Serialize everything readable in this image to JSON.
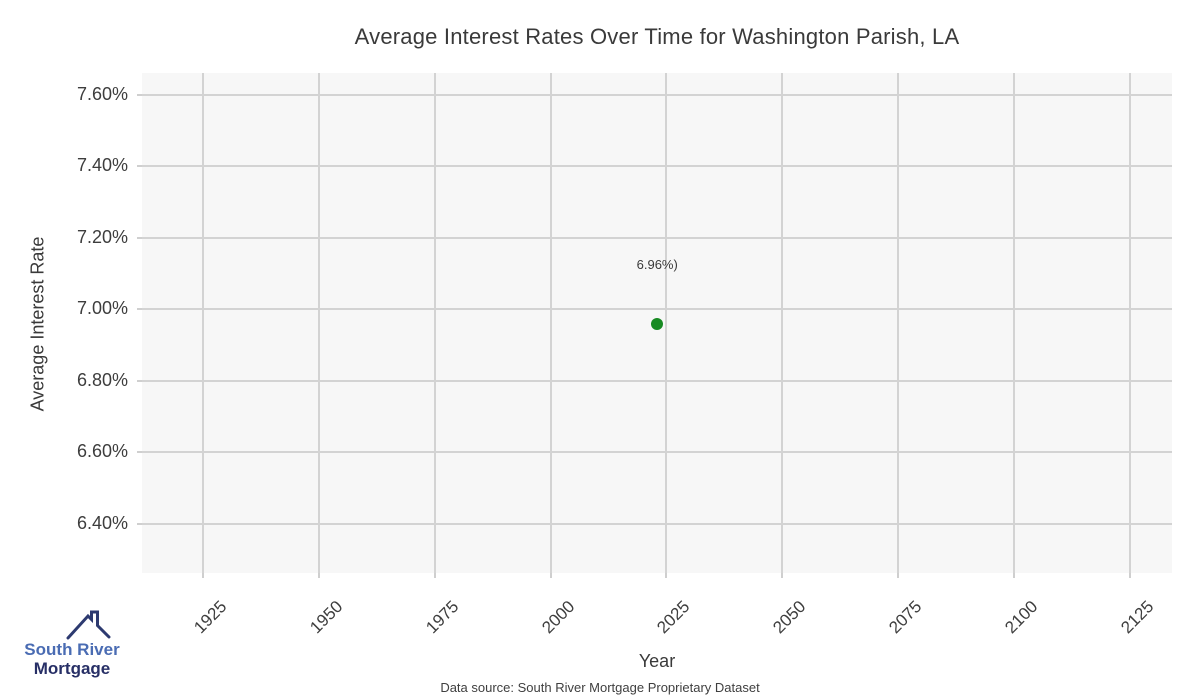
{
  "chart_data": {
    "type": "scatter",
    "title": "Average Interest Rates Over Time for Washington Parish, LA",
    "xlabel": "Year",
    "ylabel": "Average Interest Rate",
    "xlim": [
      1911.8,
      2134.1
    ],
    "ylim": [
      6.263,
      7.661
    ],
    "grid": true,
    "legend": "none",
    "plot_bg": "#f7f7f7",
    "grid_color": "#d3d3d3",
    "x_ticks": [
      {
        "value": 1925,
        "label": "1925"
      },
      {
        "value": 1950,
        "label": "1950"
      },
      {
        "value": 1975,
        "label": "1975"
      },
      {
        "value": 2000,
        "label": "2000"
      },
      {
        "value": 2025,
        "label": "2025"
      },
      {
        "value": 2050,
        "label": "2050"
      },
      {
        "value": 2075,
        "label": "2075"
      },
      {
        "value": 2100,
        "label": "2100"
      },
      {
        "value": 2125,
        "label": "2125"
      }
    ],
    "y_ticks": [
      {
        "value": 6.4,
        "label": "6.40%"
      },
      {
        "value": 6.6,
        "label": "6.60%"
      },
      {
        "value": 6.8,
        "label": "6.80%"
      },
      {
        "value": 7.0,
        "label": "7.00%"
      },
      {
        "value": 7.2,
        "label": "7.20%"
      },
      {
        "value": 7.4,
        "label": "7.40%"
      },
      {
        "value": 7.6,
        "label": "7.60%"
      }
    ],
    "series": [
      {
        "color": "#178a22",
        "marker": "circle",
        "points": [
          {
            "x": 2023,
            "y": 6.96
          }
        ]
      }
    ],
    "annotations": [
      {
        "x": 2023,
        "y": 7.12,
        "text": "6.96%)"
      }
    ]
  },
  "branding": {
    "logo_line1": "South River",
    "logo_line2": "Mortgage",
    "logo_text_color_primary": "#4a6cb3",
    "logo_text_color_secondary": "#272f66",
    "logo_roof_color": "#2d3a70"
  },
  "footer": {
    "data_source": "Data source: South River Mortgage Proprietary Dataset"
  }
}
